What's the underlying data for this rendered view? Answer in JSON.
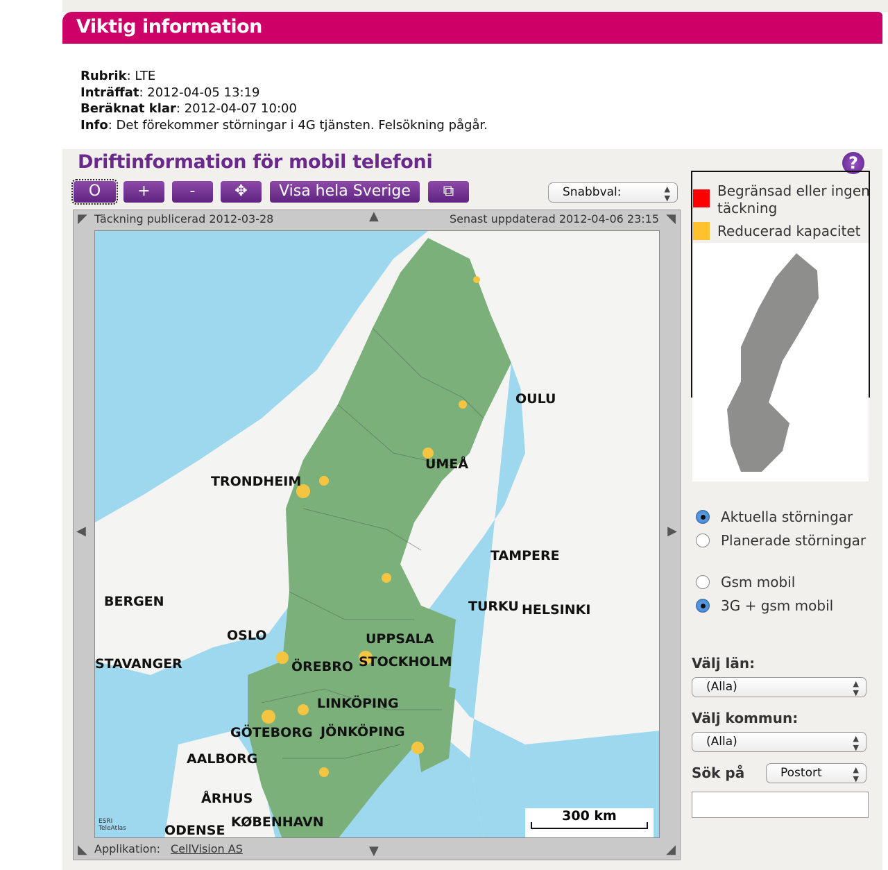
{
  "banner": {
    "title": "Viktig information"
  },
  "incident": {
    "rubrik_label": "Rubrik",
    "rubrik": "LTE",
    "intraffat_label": "Inträffat",
    "intraffat": "2012-04-05 13:19",
    "klar_label": "Beräknat klar",
    "klar": "2012-04-07 10:00",
    "info_label": "Info",
    "info": "Det förekommer störningar i 4G tjänsten. Felsökning pågår."
  },
  "section": {
    "title": "Driftinformation för mobil telefoni"
  },
  "toolbar": {
    "reset": "O",
    "zoom_in": "+",
    "zoom_out": "-",
    "pan": "✥",
    "show_all": "Visa hela Sverige",
    "window": "⧉",
    "quick_select": "Snabbval:"
  },
  "map": {
    "coverage_published": "Täckning publicerad 2012-03-28",
    "last_updated": "Senast uppdaterad 2012-04-06 23:15",
    "application_label": "Applikation:",
    "application_link": "CellVision AS",
    "scale": "300 km",
    "attribution": "ESRI TeleAtlas",
    "cities": [
      "OULU",
      "UMEÅ",
      "TRONDHEIM",
      "TAMPERE",
      "BERGEN",
      "TURKU",
      "HELSINKI",
      "OSLO",
      "UPPSALA",
      "STAVANGER",
      "ÖREBRO",
      "STOCKHOLM",
      "LINKÖPING",
      "GÖTEBORG",
      "JÖNKÖPING",
      "AALBORG",
      "ÅRHUS",
      "ODENSE",
      "KØBENHAVN"
    ],
    "colors": {
      "water": "#9dd8ee",
      "land": "#f4f4f2",
      "coverage": "#7bb07a",
      "reduced": "#f5c542"
    }
  },
  "legend": {
    "items": [
      {
        "label": "Begränsad eller ingen täckning",
        "color": "#ff0000"
      },
      {
        "label": "Reducerad kapacitet",
        "color": "#ffc22e"
      }
    ]
  },
  "filters": {
    "disturbance": [
      {
        "label": "Aktuella störningar",
        "checked": true
      },
      {
        "label": "Planerade störningar",
        "checked": false
      }
    ],
    "network": [
      {
        "label": "Gsm mobil",
        "checked": false
      },
      {
        "label": "3G + gsm mobil",
        "checked": true
      }
    ],
    "lan_label": "Välj län:",
    "lan_value": "(Alla)",
    "kommun_label": "Välj kommun:",
    "kommun_value": "(Alla)",
    "search_label": "Sök på",
    "search_type": "Postort",
    "search_value": ""
  }
}
